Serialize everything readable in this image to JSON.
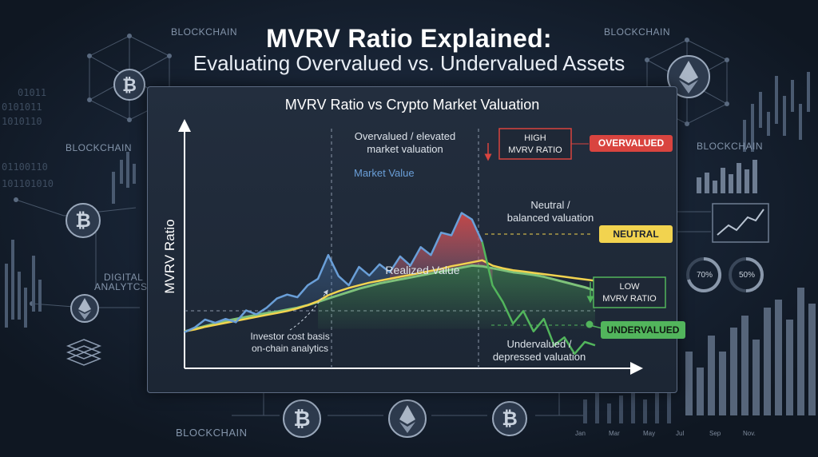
{
  "header": {
    "title": "MVRV Ratio Explained:",
    "subtitle": "Evaluating Overvalued vs. Undervalued Assets"
  },
  "background": {
    "tags": [
      "BLOCKCHAIN",
      "BLOCKCHAIN",
      "BLOCKCHAIN",
      "BLOCKCHAIN",
      "BLOCKCHAIN",
      "DIGITAL",
      "ANALYTCS"
    ],
    "binary": [
      "01011",
      "0101011",
      "1010110",
      "01100110",
      "101101010"
    ],
    "gauges": [
      "70%",
      "50%"
    ],
    "months": [
      "Jan",
      "Mar",
      "May",
      "Jul",
      "Sep",
      "Nov."
    ],
    "coins": [
      "bitcoin-icon",
      "ethereum-icon"
    ]
  },
  "colors": {
    "market_value": "#6a9fd8",
    "realized_value": "#7ec27a",
    "high_ratio": "#d9443f",
    "neutral": "#f2d34f",
    "undervalued": "#52b55c"
  },
  "chart_data": {
    "type": "line",
    "title": "MVRV Ratio vs Crypto Market Valuation",
    "ylabel": "MVRV Ratio",
    "xlabel": "",
    "x": [
      0,
      1,
      2,
      3,
      4,
      5,
      6,
      7,
      8,
      9,
      10,
      11,
      12,
      13,
      14,
      15,
      16,
      17,
      18,
      19,
      20,
      21,
      22,
      23,
      24,
      25,
      26,
      27,
      28,
      29,
      30,
      31,
      32,
      33,
      34,
      35,
      36,
      37,
      38,
      39,
      40
    ],
    "series": [
      {
        "name": "Market Value",
        "values": [
          0.5,
          1.2,
          2.4,
          1.9,
          2.5,
          2.0,
          3.8,
          3.2,
          4.2,
          5.6,
          6.2,
          5.8,
          7.6,
          8.6,
          12.2,
          9.0,
          7.6,
          10.4,
          9.1,
          10.8,
          9.6,
          12.0,
          10.6,
          13.4,
          12.2,
          15.6,
          15.2,
          18.6,
          17.6,
          14.2,
          7.6,
          5.1,
          1.8,
          3.7,
          0.6,
          2.5,
          -1.5,
          -0.3,
          -2.8,
          -1.0,
          -1.5
        ]
      },
      {
        "name": "Realized Value",
        "values": [
          0.6,
          1.0,
          1.4,
          1.8,
          2.2,
          2.5,
          2.8,
          3.1,
          3.4,
          3.6,
          3.9,
          4.2,
          4.6,
          5.1,
          5.6,
          6.1,
          6.6,
          7.1,
          7.5,
          7.9,
          8.2,
          8.5,
          8.8,
          9.1,
          9.4,
          9.7,
          10.0,
          10.3,
          10.6,
          10.5,
          10.2,
          9.9,
          9.6,
          9.4,
          9.2,
          8.9,
          8.5,
          8.1,
          7.7,
          7.3,
          6.8
        ]
      },
      {
        "name": "Investor cost basis",
        "values": [
          0.6,
          0.9,
          1.3,
          1.6,
          1.9,
          2.2,
          2.5,
          2.8,
          3.1,
          3.4,
          3.7,
          4.1,
          4.6,
          5.2,
          6.1,
          6.7,
          7.2,
          7.6,
          8.0,
          8.3,
          8.6,
          8.9,
          9.2,
          9.5,
          9.8,
          10.1,
          10.5,
          10.8,
          11.1,
          11.4,
          10.6,
          10.2,
          9.9,
          9.7,
          9.5,
          9.3,
          9.1,
          8.9,
          8.7,
          8.5,
          8.3
        ]
      }
    ],
    "annotations": [
      {
        "id": "overvalued-note",
        "text": [
          "Overvalued / elevated",
          "market valuation"
        ]
      },
      {
        "id": "market-value-label",
        "text": [
          "Market Value"
        ]
      },
      {
        "id": "neutral-note",
        "text": [
          "Neutral /",
          "balanced valuation"
        ]
      },
      {
        "id": "realized-value-label",
        "text": [
          "Realized Value"
        ]
      },
      {
        "id": "cost-basis-note",
        "text": [
          "Investor cost basis",
          "on-chain analytics"
        ]
      },
      {
        "id": "undervalued-note",
        "text": [
          "Undervalued /",
          "depressed valuation"
        ]
      }
    ],
    "callouts": [
      {
        "id": "high-mvrv",
        "text": [
          "HIGH",
          "MVRV RATIO"
        ]
      },
      {
        "id": "low-mvrv",
        "text": [
          "LOW",
          "MVRV RATIO"
        ]
      }
    ],
    "badges": {
      "overvalued": "OVERVALUED",
      "neutral": "NEUTRAL",
      "undervalued": "UNDERVALUED"
    },
    "ylim": [
      -5,
      28
    ],
    "grid": false,
    "legend": "none"
  }
}
